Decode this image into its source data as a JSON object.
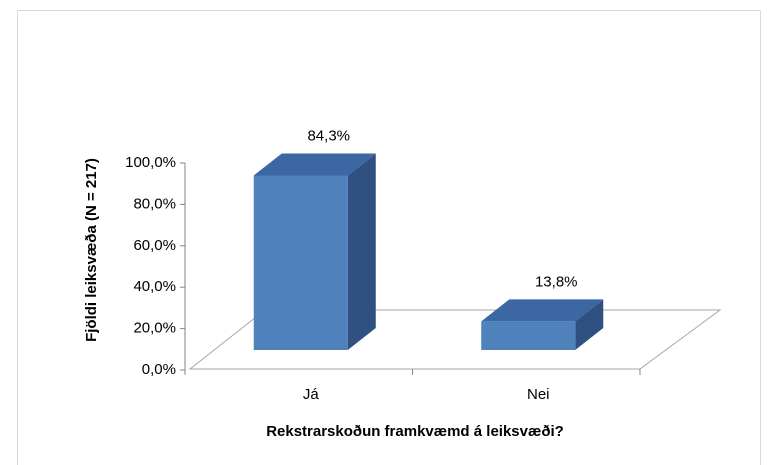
{
  "chart_data": {
    "type": "bar3d",
    "categories": [
      "Já",
      "Nei"
    ],
    "values": [
      84.3,
      13.8
    ],
    "value_labels": [
      "84,3%",
      "13,8%"
    ],
    "color": "#4f81bd",
    "ylim": [
      0,
      100
    ],
    "yticks": [
      {
        "value": 0,
        "label": "0,0%"
      },
      {
        "value": 20,
        "label": "20,0%"
      },
      {
        "value": 40,
        "label": "40,0%"
      },
      {
        "value": 60,
        "label": "60,0%"
      },
      {
        "value": 80,
        "label": "80,0%"
      },
      {
        "value": 100,
        "label": "100,0%"
      }
    ],
    "x_label": "Rekstrarskoðun framkvæmd á leiksvæði?",
    "y_label": "Fjöldi leiksvæða (N = 217)"
  }
}
